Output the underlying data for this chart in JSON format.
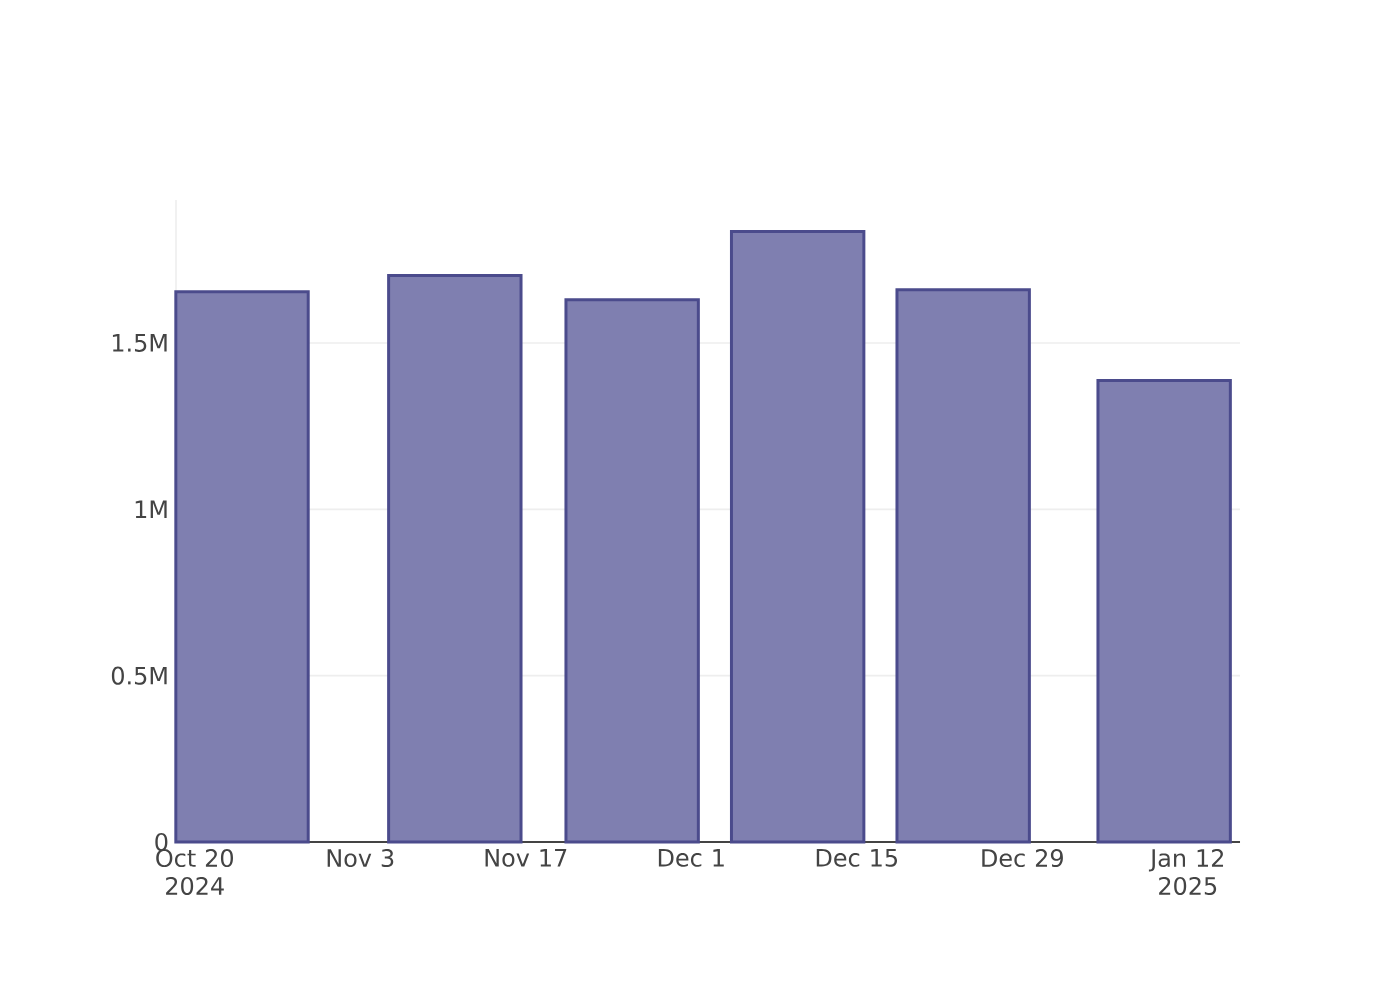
{
  "chart_data": {
    "type": "bar",
    "x": [
      "2024-10-24",
      "2024-11-11",
      "2024-11-26",
      "2024-12-10",
      "2024-12-24",
      "2025-01-10"
    ],
    "values": [
      1654000,
      1703000,
      1630000,
      1835000,
      1660000,
      1387000
    ],
    "color": "#7f7fb0",
    "xlim": [
      "2024-10-18T10:00",
      "2025-01-16T10:00"
    ],
    "xticks": [
      {
        "value": "2024-10-20",
        "label": "Oct 20 2024"
      },
      {
        "value": "2024-11-03",
        "label": "Nov 3"
      },
      {
        "value": "2024-11-17",
        "label": "Nov 17"
      },
      {
        "value": "2024-12-01",
        "label": "Dec 1"
      },
      {
        "value": "2024-12-15",
        "label": "Dec 15"
      },
      {
        "value": "2024-12-29",
        "label": "Dec 29"
      },
      {
        "value": "2025-01-12",
        "label": "Jan 12 2025"
      }
    ],
    "ylim": [
      0,
      1930000
    ],
    "yticks": [
      0,
      {
        "value": 500000,
        "label": "0.5M"
      },
      {
        "value": 1000000,
        "label": "1M"
      },
      {
        "value": 1500000,
        "label": "1.5M"
      }
    ],
    "grid": "y"
  }
}
